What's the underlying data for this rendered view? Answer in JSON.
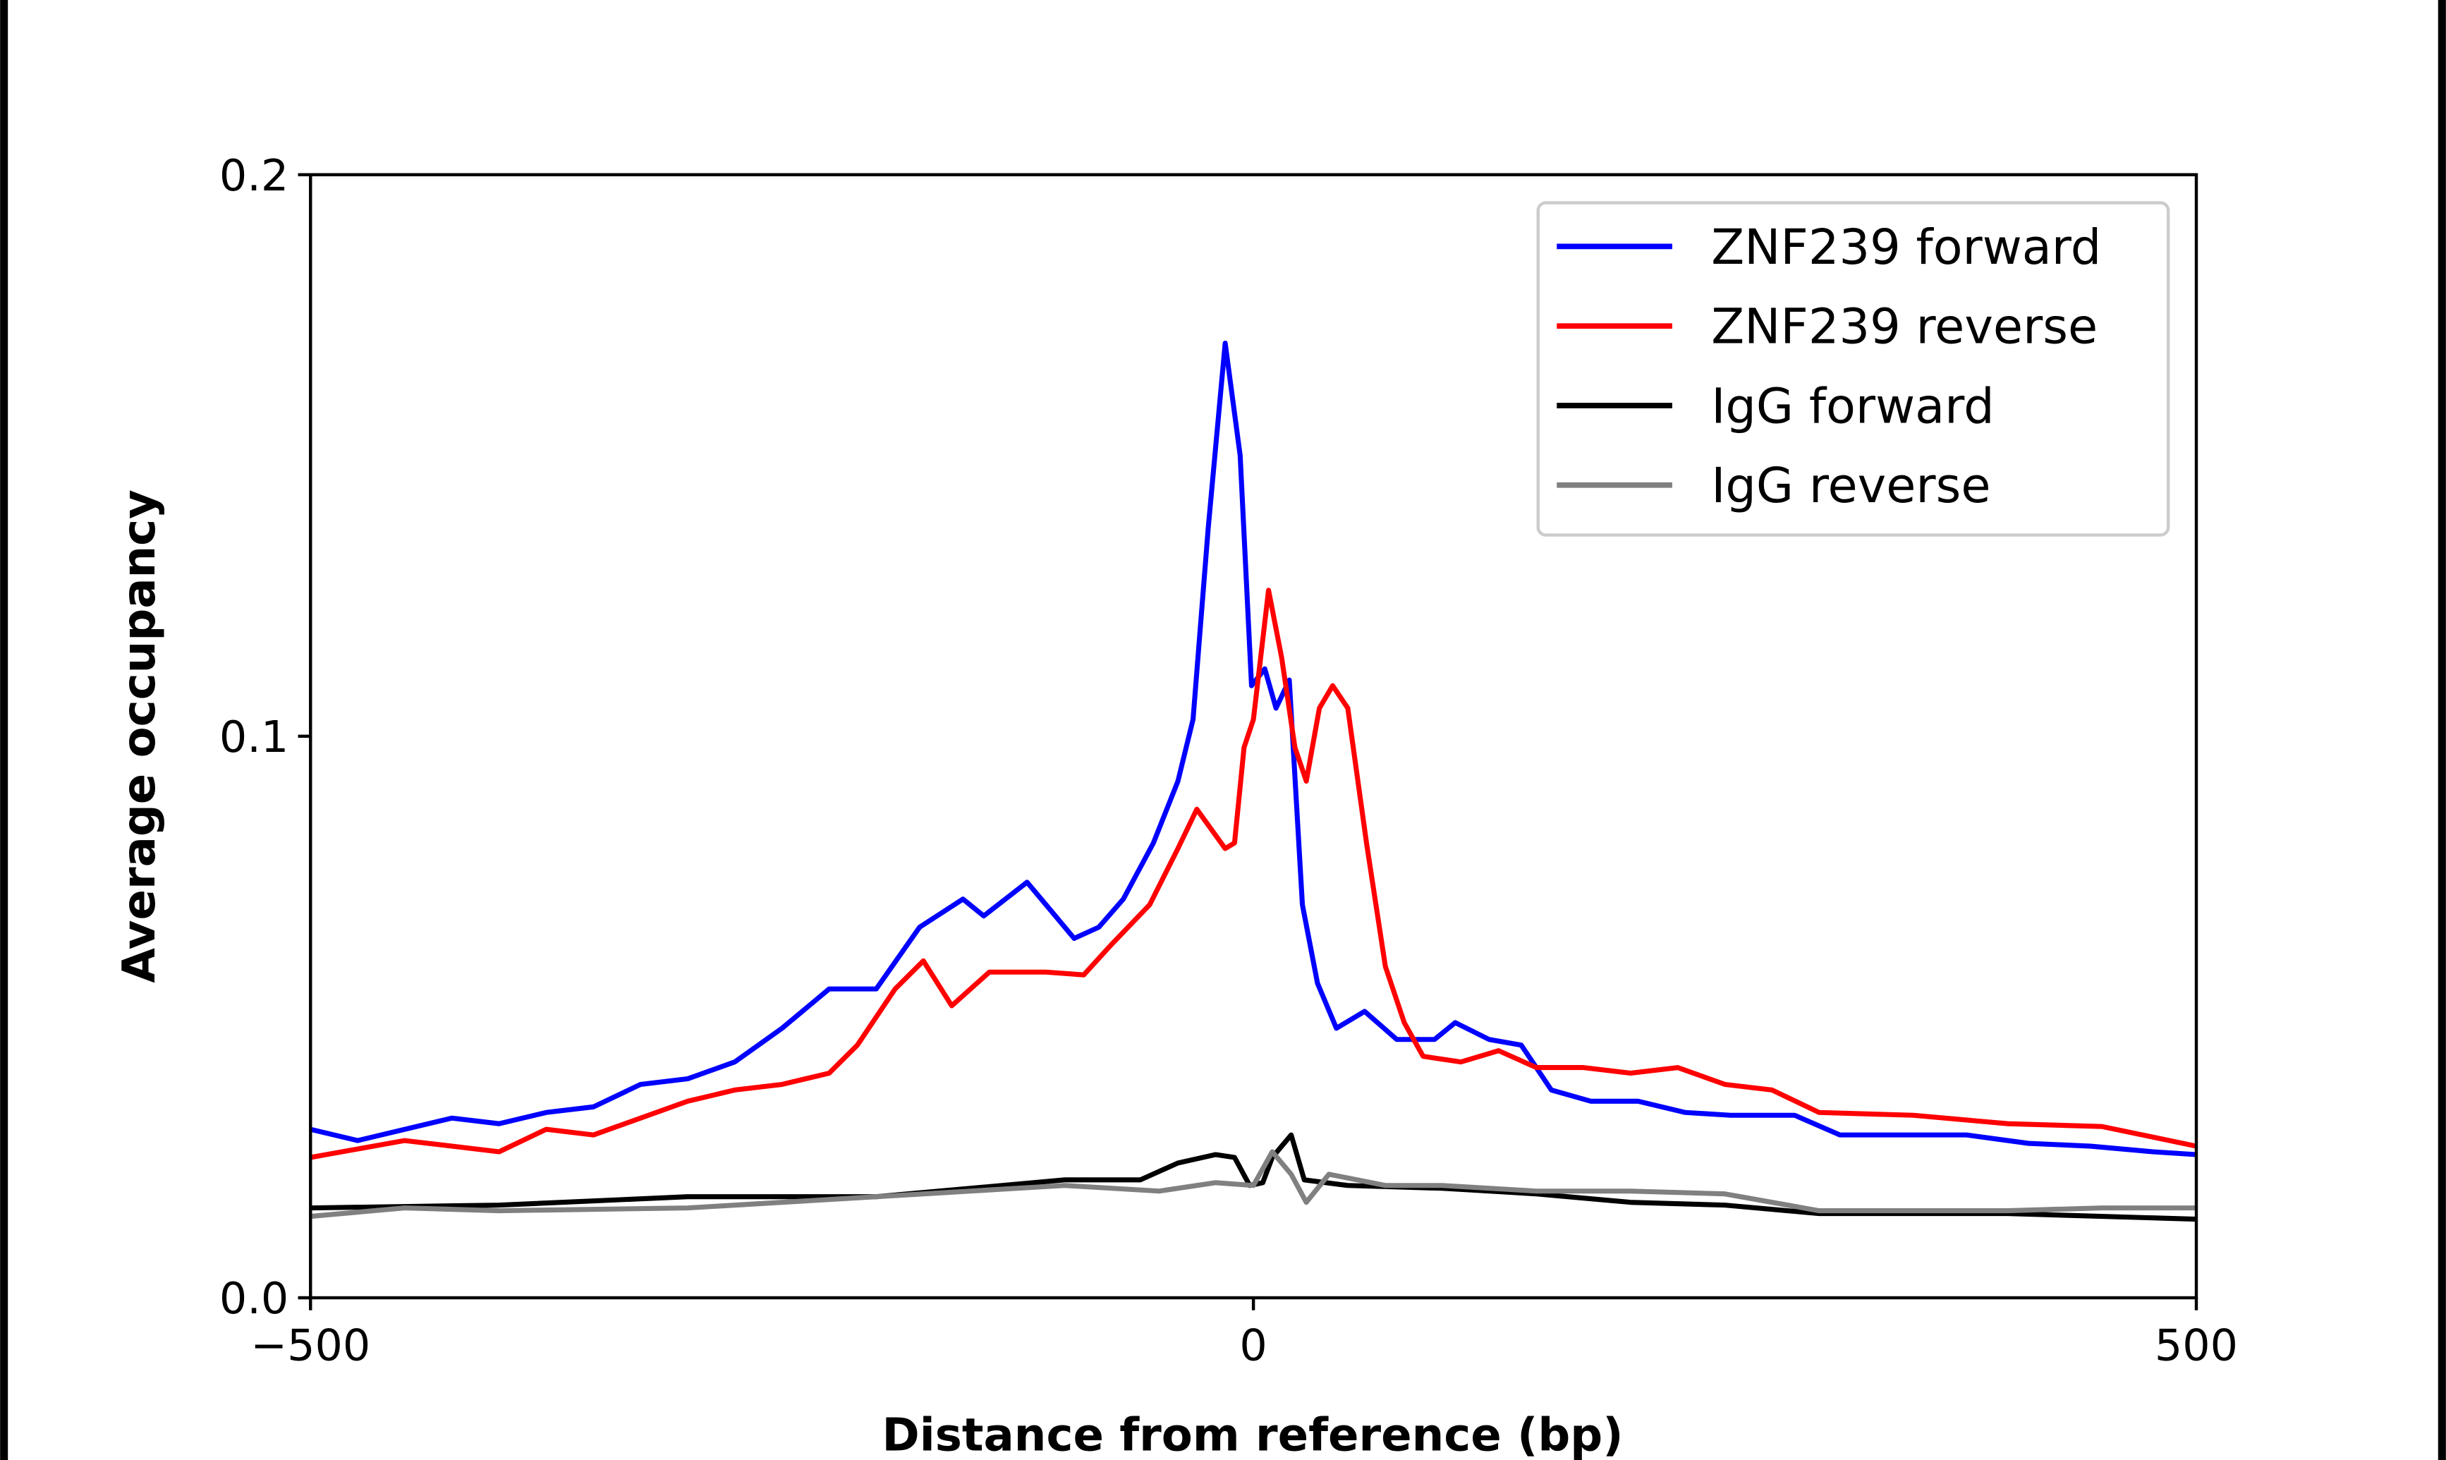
{
  "chart_data": {
    "type": "line",
    "title": "",
    "xlabel": "Distance from reference (bp)",
    "ylabel": "Average occupancy",
    "xlim": [
      -500,
      500
    ],
    "ylim": [
      0.0,
      0.2
    ],
    "xticks": [
      -500,
      0,
      500
    ],
    "xtick_labels": [
      "−500",
      "0",
      "500"
    ],
    "yticks": [
      0.0,
      0.1,
      0.2
    ],
    "ytick_labels": [
      "0.0",
      "0.1",
      "0.2"
    ],
    "grid": false,
    "legend_position": "top-right",
    "series": [
      {
        "name": "ZNF239 forward",
        "color": "#0000ff",
        "x": [
          -500,
          -475,
          -450,
          -425,
          -400,
          -375,
          -350,
          -325,
          -300,
          -275,
          -250,
          -225,
          -200,
          -177,
          -154,
          -143,
          -120,
          -110,
          -95,
          -82,
          -69,
          -53,
          -40,
          -32,
          -24,
          -15,
          -7,
          -1,
          6,
          12,
          19,
          26,
          34,
          44,
          59,
          76,
          96,
          107,
          125,
          142,
          158,
          179,
          204,
          229,
          253,
          287,
          311,
          345,
          378,
          411,
          444,
          477,
          500
        ],
        "y": [
          0.03,
          0.028,
          0.03,
          0.032,
          0.031,
          0.033,
          0.034,
          0.038,
          0.039,
          0.042,
          0.048,
          0.055,
          0.055,
          0.066,
          0.071,
          0.068,
          0.074,
          0.07,
          0.064,
          0.066,
          0.071,
          0.081,
          0.092,
          0.103,
          0.137,
          0.17,
          0.15,
          0.109,
          0.112,
          0.105,
          0.11,
          0.07,
          0.056,
          0.048,
          0.051,
          0.046,
          0.046,
          0.049,
          0.046,
          0.045,
          0.037,
          0.035,
          0.035,
          0.033,
          0.0325,
          0.0325,
          0.029,
          0.029,
          0.029,
          0.0275,
          0.027,
          0.026,
          0.0255
        ]
      },
      {
        "name": "ZNF239 reverse",
        "color": "#ff0000",
        "x": [
          -500,
          -450,
          -400,
          -375,
          -350,
          -300,
          -275,
          -250,
          -225,
          -210,
          -190,
          -175,
          -160,
          -140,
          -110,
          -90,
          -75,
          -55,
          -40,
          -30,
          -15,
          -10,
          -5,
          0,
          8,
          15,
          22,
          28,
          35,
          42,
          50,
          60,
          70,
          80,
          90,
          110,
          130,
          150,
          175,
          200,
          225,
          250,
          275,
          300,
          350,
          400,
          450,
          500
        ],
        "y": [
          0.025,
          0.028,
          0.026,
          0.03,
          0.029,
          0.035,
          0.037,
          0.038,
          0.04,
          0.045,
          0.055,
          0.06,
          0.052,
          0.058,
          0.058,
          0.0575,
          0.063,
          0.07,
          0.08,
          0.087,
          0.08,
          0.081,
          0.098,
          0.103,
          0.126,
          0.114,
          0.098,
          0.092,
          0.105,
          0.109,
          0.105,
          0.081,
          0.059,
          0.049,
          0.043,
          0.042,
          0.044,
          0.041,
          0.041,
          0.04,
          0.041,
          0.038,
          0.037,
          0.033,
          0.0325,
          0.031,
          0.0305,
          0.027
        ]
      },
      {
        "name": "IgG forward",
        "color": "#000000",
        "x": [
          -500,
          -400,
          -300,
          -200,
          -150,
          -100,
          -60,
          -40,
          -20,
          -10,
          -2,
          5,
          10,
          20,
          27,
          50,
          100,
          150,
          200,
          250,
          300,
          400,
          500
        ],
        "y": [
          0.016,
          0.0165,
          0.018,
          0.018,
          0.0195,
          0.021,
          0.021,
          0.024,
          0.0255,
          0.025,
          0.02,
          0.0205,
          0.025,
          0.029,
          0.021,
          0.02,
          0.0195,
          0.0185,
          0.017,
          0.0165,
          0.015,
          0.015,
          0.014
        ]
      },
      {
        "name": "IgG reverse",
        "color": "#808080",
        "x": [
          -500,
          -450,
          -400,
          -300,
          -200,
          -150,
          -100,
          -50,
          -20,
          0,
          10,
          20,
          28,
          40,
          70,
          100,
          150,
          200,
          250,
          300,
          400,
          450,
          500
        ],
        "y": [
          0.0145,
          0.016,
          0.0155,
          0.016,
          0.018,
          0.019,
          0.02,
          0.019,
          0.0205,
          0.02,
          0.026,
          0.022,
          0.017,
          0.022,
          0.02,
          0.02,
          0.019,
          0.019,
          0.0185,
          0.0155,
          0.0155,
          0.016,
          0.016
        ]
      }
    ]
  }
}
